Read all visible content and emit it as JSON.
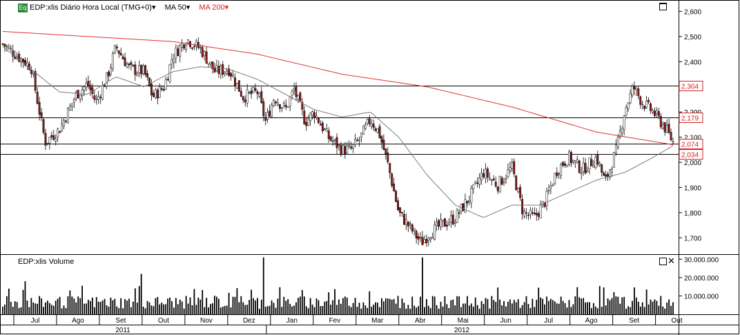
{
  "header": {
    "badge": "Eq",
    "instrument": "EDP:xlis Diário Hora Local (TMG+0)",
    "ma_short": "MA 50",
    "ma_long": "MA 200"
  },
  "volume_panel": {
    "title": "EDP:xlis Volume",
    "close_glyph": "✕"
  },
  "colors": {
    "up": "#ffffff",
    "down": "#8b1a1a",
    "ma50": "#7a7a7a",
    "ma200": "#e03030",
    "level_box": "#d22222",
    "grid": "#000000"
  },
  "chart_data": {
    "type": "candlestick",
    "price_axis": {
      "ylim": [
        1.635,
        2.645
      ],
      "ticks": [
        "2,600",
        "2,500",
        "2,400",
        "2,300",
        "2,200",
        "2,100",
        "2,000",
        "1,900",
        "1,800",
        "1,700"
      ]
    },
    "volume_axis": {
      "ylim": [
        0,
        32000000
      ],
      "ticks": [
        "30.000.000",
        "20.000.000",
        "10.000.000"
      ]
    },
    "horizontal_levels": [
      {
        "value": 2.304,
        "label": "2,304"
      },
      {
        "value": 2.179,
        "label": "2,179"
      },
      {
        "value": 2.074,
        "label": "2,074"
      },
      {
        "value": 2.034,
        "label": "2,034"
      }
    ],
    "months": [
      "Jul",
      "Ago",
      "Set",
      "Out",
      "Nov",
      "Dez",
      "Jan",
      "Fev",
      "Mar",
      "Abr",
      "Mai",
      "Jun",
      "Jul",
      "Ago",
      "Set",
      "Out"
    ],
    "years": [
      "2011",
      "2012"
    ],
    "close_path": [
      [
        0,
        2.47
      ],
      [
        1,
        2.38
      ],
      [
        1.5,
        2.08
      ],
      [
        2,
        2.13
      ],
      [
        2.6,
        2.27
      ],
      [
        3,
        2.31
      ],
      [
        3.3,
        2.24
      ],
      [
        3.7,
        2.34
      ],
      [
        4,
        2.46
      ],
      [
        4.5,
        2.37
      ],
      [
        5,
        2.36
      ],
      [
        5.3,
        2.26
      ],
      [
        5.7,
        2.3
      ],
      [
        6,
        2.42
      ],
      [
        6.5,
        2.49
      ],
      [
        7,
        2.45
      ],
      [
        7.5,
        2.36
      ],
      [
        8,
        2.37
      ],
      [
        8.5,
        2.26
      ],
      [
        9,
        2.28
      ],
      [
        9.3,
        2.16
      ],
      [
        9.6,
        2.26
      ],
      [
        10,
        2.21
      ],
      [
        10.3,
        2.29
      ],
      [
        10.7,
        2.16
      ],
      [
        11,
        2.2
      ],
      [
        11.5,
        2.1
      ],
      [
        12,
        2.05
      ],
      [
        12.3,
        2.05
      ],
      [
        12.6,
        2.09
      ],
      [
        13,
        2.17
      ],
      [
        13.3,
        2.12
      ],
      [
        13.6,
        2.0
      ],
      [
        14,
        1.8
      ],
      [
        14.4,
        1.74
      ],
      [
        14.8,
        1.68
      ],
      [
        15.1,
        1.72
      ],
      [
        15.5,
        1.75
      ],
      [
        16,
        1.78
      ],
      [
        16.5,
        1.86
      ],
      [
        17,
        1.96
      ],
      [
        17.5,
        1.91
      ],
      [
        18,
        1.98
      ],
      [
        18.4,
        1.8
      ],
      [
        18.8,
        1.78
      ],
      [
        19.2,
        1.85
      ],
      [
        19.6,
        1.97
      ],
      [
        20,
        2.02
      ],
      [
        20.5,
        1.97
      ],
      [
        21,
        2.02
      ],
      [
        21.3,
        1.92
      ],
      [
        21.7,
        2.05
      ],
      [
        22,
        2.21
      ],
      [
        22.3,
        2.3
      ],
      [
        22.6,
        2.24
      ],
      [
        23,
        2.2
      ],
      [
        23.4,
        2.14
      ],
      [
        23.7,
        2.08
      ]
    ],
    "ma50": [
      [
        0,
        2.46
      ],
      [
        1,
        2.37
      ],
      [
        2,
        2.28
      ],
      [
        3,
        2.27
      ],
      [
        4,
        2.34
      ],
      [
        5,
        2.3
      ],
      [
        6,
        2.36
      ],
      [
        7,
        2.38
      ],
      [
        8,
        2.37
      ],
      [
        9,
        2.33
      ],
      [
        10,
        2.27
      ],
      [
        11,
        2.21
      ],
      [
        12,
        2.18
      ],
      [
        13,
        2.2
      ],
      [
        14,
        2.1
      ],
      [
        15,
        1.95
      ],
      [
        16,
        1.83
      ],
      [
        17,
        1.78
      ],
      [
        18,
        1.83
      ],
      [
        19,
        1.83
      ],
      [
        20,
        1.88
      ],
      [
        21,
        1.93
      ],
      [
        22,
        1.96
      ],
      [
        23,
        2.02
      ],
      [
        23.7,
        2.066
      ]
    ],
    "ma200": [
      [
        0,
        2.52
      ],
      [
        3,
        2.5
      ],
      [
        6,
        2.48
      ],
      [
        9,
        2.43
      ],
      [
        12,
        2.35
      ],
      [
        15,
        2.3
      ],
      [
        18,
        2.22
      ],
      [
        21,
        2.12
      ],
      [
        23.7,
        2.07
      ]
    ],
    "volume_levels": [
      {
        "v": 31000000
      },
      {
        "v": 31000000
      },
      {
        "v": 22000000
      },
      {
        "v": 18000000
      }
    ]
  }
}
